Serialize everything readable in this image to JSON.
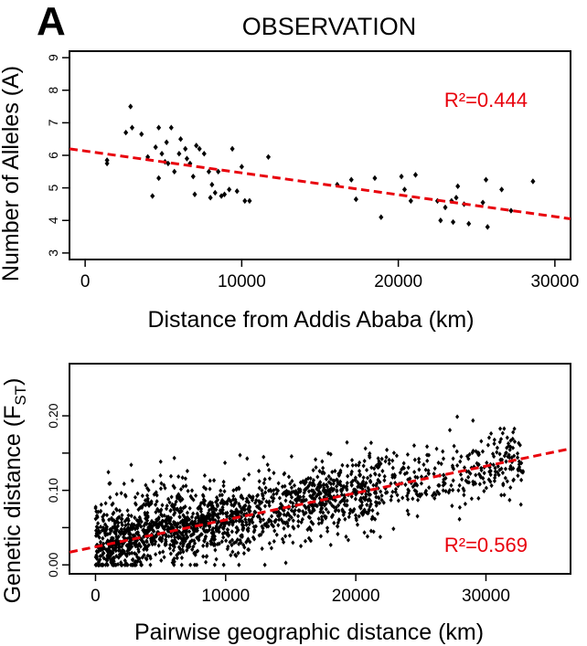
{
  "panel_label": "A",
  "colors": {
    "points": "#000000",
    "fit_line": "#e8000b",
    "r2_text": "#e8000b"
  },
  "chart_data": [
    {
      "type": "scatter",
      "title": "OBSERVATION",
      "xlabel": "Distance from Addis Ababa (km)",
      "ylabel": "Number of Alleles (A)",
      "xlim": [
        -1000,
        31000
      ],
      "ylim": [
        2.8,
        9.2
      ],
      "xticks": [
        0,
        10000,
        20000,
        30000
      ],
      "yticks": [
        3,
        4,
        5,
        6,
        7,
        8,
        9
      ],
      "xtick_labels": [
        "0",
        "10000",
        "20000",
        "30000"
      ],
      "ytick_labels": [
        "3",
        "4",
        "5",
        "6",
        "7",
        "8",
        "9"
      ],
      "annotation": "R²=0.444",
      "trend_line": {
        "x": [
          -1000,
          31000
        ],
        "y": [
          6.2,
          4.05
        ]
      },
      "points": [
        [
          1400,
          5.85
        ],
        [
          1400,
          5.75
        ],
        [
          2600,
          6.7
        ],
        [
          2900,
          7.5
        ],
        [
          3000,
          6.85
        ],
        [
          3600,
          6.65
        ],
        [
          4000,
          5.95
        ],
        [
          4300,
          4.75
        ],
        [
          4500,
          6.25
        ],
        [
          4700,
          6.85
        ],
        [
          4700,
          5.3
        ],
        [
          4900,
          6.05
        ],
        [
          5100,
          5.8
        ],
        [
          5200,
          6.4
        ],
        [
          5300,
          5.75
        ],
        [
          5500,
          6.85
        ],
        [
          5700,
          5.5
        ],
        [
          6000,
          6.05
        ],
        [
          6100,
          6.5
        ],
        [
          6400,
          6.2
        ],
        [
          6500,
          5.9
        ],
        [
          6700,
          5.75
        ],
        [
          6900,
          5.35
        ],
        [
          7000,
          4.8
        ],
        [
          7100,
          6.3
        ],
        [
          7300,
          6.2
        ],
        [
          7600,
          6.05
        ],
        [
          7900,
          5.5
        ],
        [
          8000,
          4.7
        ],
        [
          8100,
          5.1
        ],
        [
          8300,
          4.85
        ],
        [
          8500,
          5.5
        ],
        [
          8700,
          4.75
        ],
        [
          8900,
          4.8
        ],
        [
          9200,
          4.95
        ],
        [
          9400,
          6.2
        ],
        [
          9700,
          4.9
        ],
        [
          10000,
          5.65
        ],
        [
          10200,
          4.6
        ],
        [
          10500,
          4.6
        ],
        [
          11700,
          5.95
        ],
        [
          16100,
          5.1
        ],
        [
          17000,
          5.25
        ],
        [
          17300,
          4.65
        ],
        [
          18500,
          5.3
        ],
        [
          18900,
          4.1
        ],
        [
          20200,
          5.35
        ],
        [
          20400,
          4.95
        ],
        [
          20800,
          4.6
        ],
        [
          21100,
          5.4
        ],
        [
          22500,
          4.6
        ],
        [
          22700,
          4.0
        ],
        [
          23000,
          4.4
        ],
        [
          23400,
          4.6
        ],
        [
          23500,
          3.95
        ],
        [
          23700,
          4.7
        ],
        [
          23800,
          5.05
        ],
        [
          24200,
          4.5
        ],
        [
          24500,
          3.9
        ],
        [
          25400,
          4.55
        ],
        [
          25600,
          5.25
        ],
        [
          25700,
          3.8
        ],
        [
          26600,
          4.95
        ],
        [
          27200,
          4.3
        ],
        [
          28600,
          5.2
        ]
      ]
    },
    {
      "type": "scatter",
      "title": "",
      "xlabel": "Pairwise geographic distance (km)",
      "ylabel": "Genetic distance (F",
      "ylabel_sub": "ST",
      "ylabel_close": ")",
      "xlim": [
        -2000,
        36500
      ],
      "ylim": [
        -0.012,
        0.27
      ],
      "xticks": [
        0,
        10000,
        20000,
        30000
      ],
      "yticks": [
        0.0,
        0.05,
        0.1,
        0.15,
        0.2
      ],
      "xtick_labels": [
        "0",
        "10000",
        "20000",
        "30000"
      ],
      "ytick_labels": [
        "0.00",
        "0.10",
        "0.20"
      ],
      "labeled_ytick_values": [
        0.0,
        0.1,
        0.2
      ],
      "annotation": "R²=0.569",
      "trend_line": {
        "x": [
          -2000,
          36500
        ],
        "y": [
          0.017,
          0.156
        ]
      },
      "point_cloud": {
        "approx_n": 2000,
        "x_range": [
          0,
          33000
        ],
        "y_range": [
          0.0,
          0.21
        ],
        "relation": "y ≈ 0.0242 + 0.0000036·x ± 0.03"
      }
    }
  ]
}
